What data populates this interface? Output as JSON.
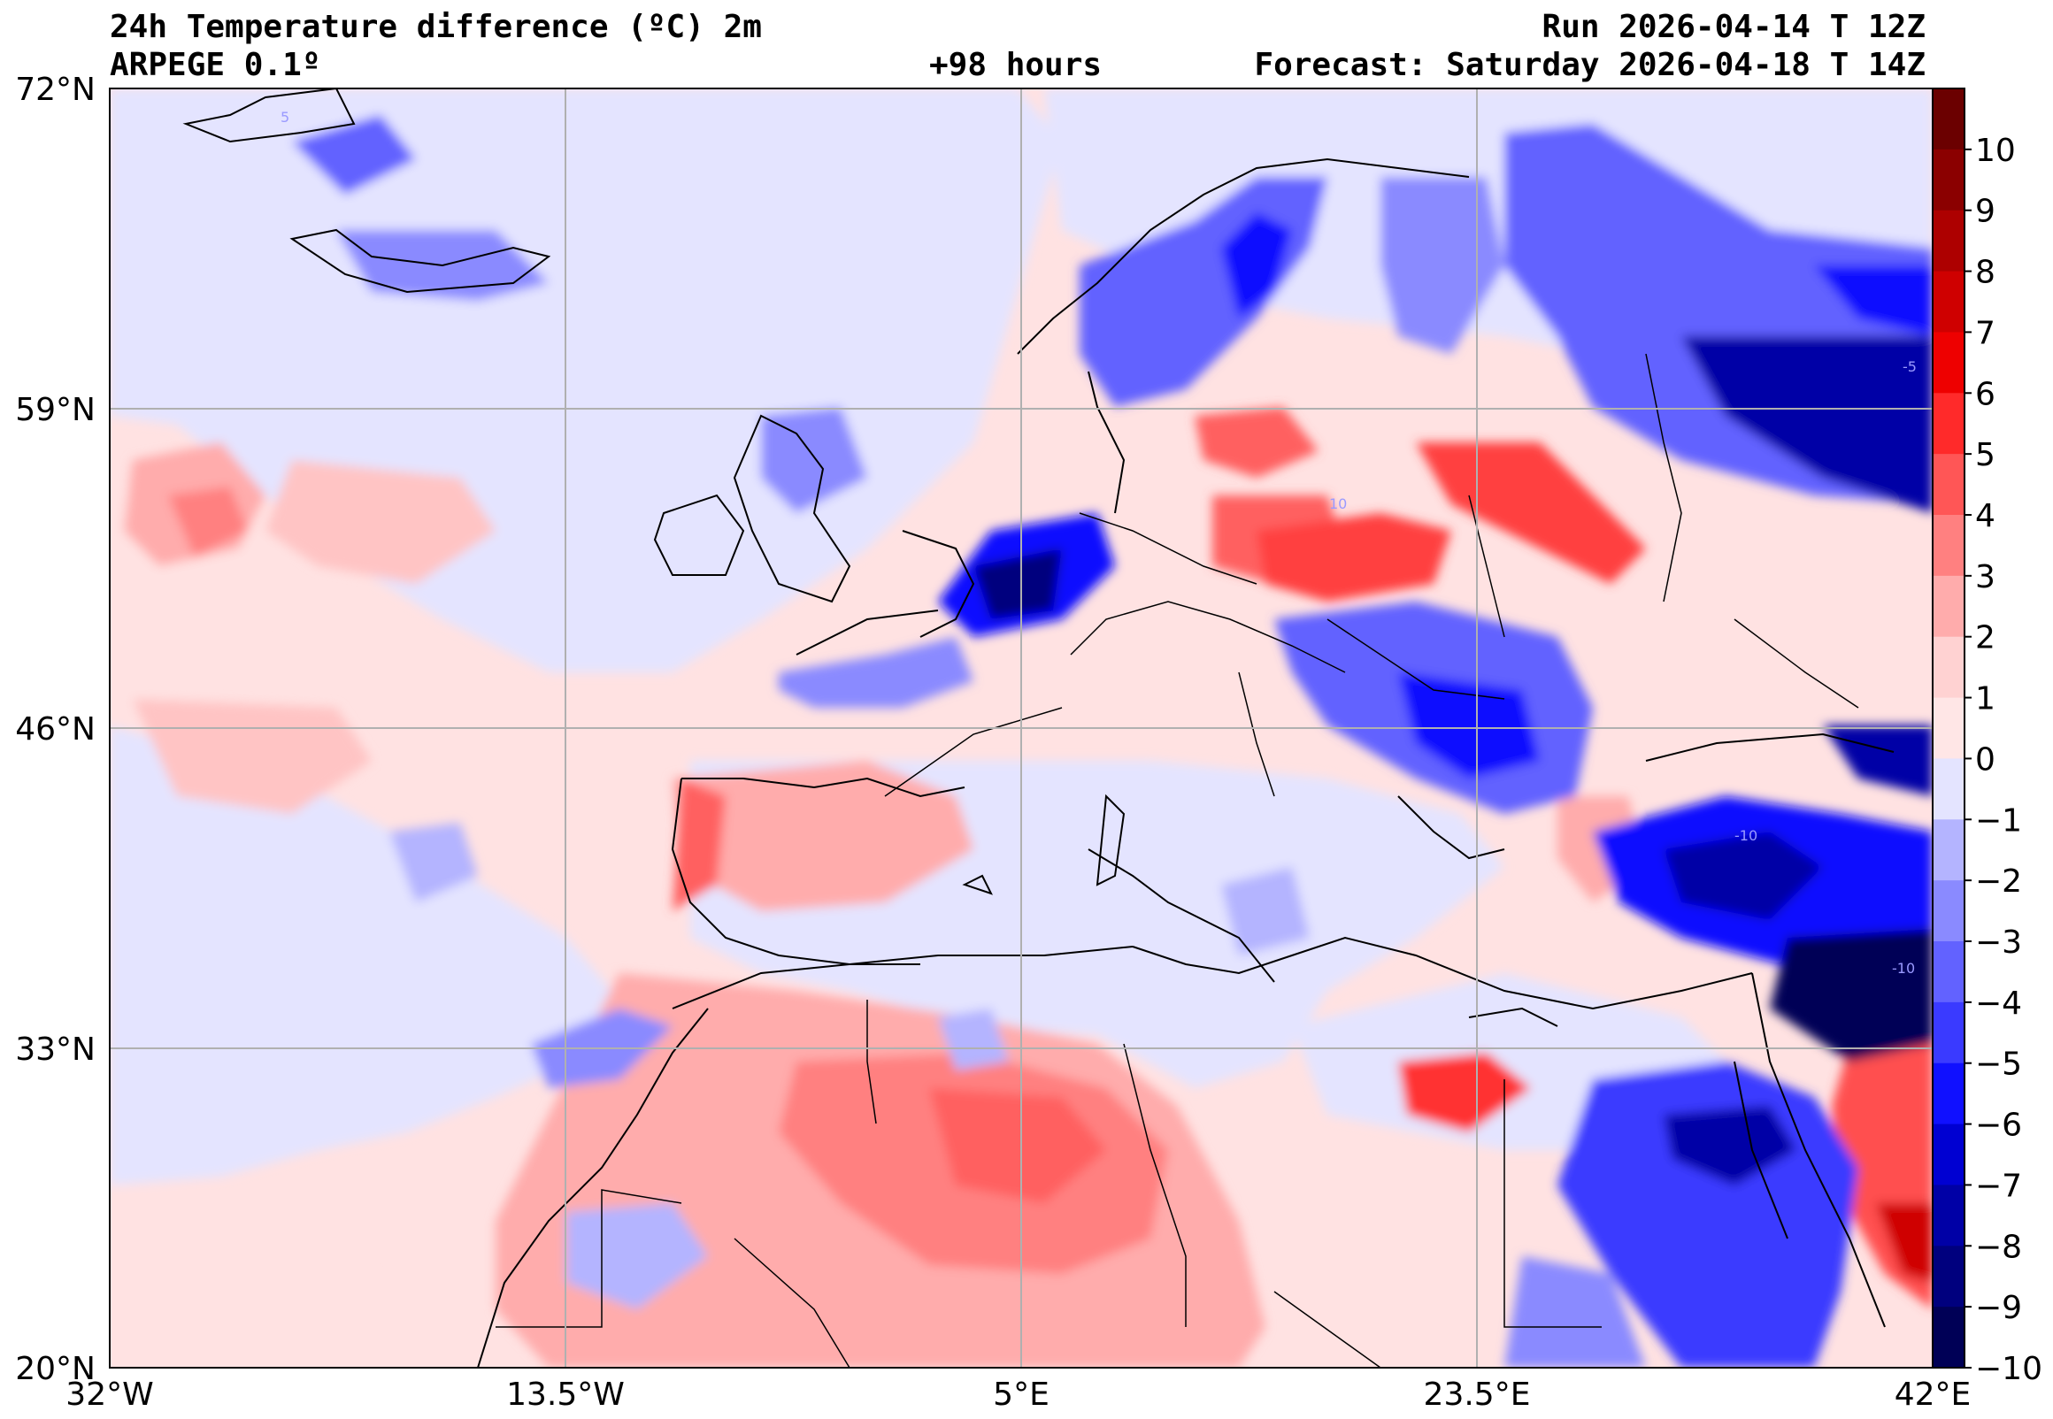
{
  "header": {
    "title": "24h Temperature difference (ºC) 2m",
    "model": "ARPEGE 0.1º",
    "lead_time": "+98 hours",
    "run": "Run 2026-04-14 T 12Z",
    "forecast": "Forecast: Saturday 2026-04-18 T 14Z"
  },
  "map": {
    "lon_range": [
      -32,
      42
    ],
    "lat_range": [
      20,
      72
    ],
    "lon_ticks": [
      "32°W",
      "13.5°W",
      "5°E",
      "23.5°E",
      "42°E"
    ],
    "lat_ticks": [
      "72°N",
      "59°N",
      "46°N",
      "33°N",
      "20°N"
    ],
    "gridlines": true
  },
  "colorbar": {
    "labels": [
      "10",
      "9",
      "8",
      "7",
      "6",
      "5",
      "4",
      "3",
      "2",
      "1",
      "0",
      "−1",
      "−2",
      "−3",
      "−4",
      "−5",
      "−6",
      "−7",
      "−8",
      "−9",
      "−10"
    ],
    "colors": [
      "#6b0000",
      "#8b0000",
      "#ad0000",
      "#cf0000",
      "#ee0000",
      "#ff2a2a",
      "#ff5656",
      "#ff8080",
      "#ffacac",
      "#ffd2d2",
      "#ffe6e6",
      "#e4e4ff",
      "#b4b4ff",
      "#8a8aff",
      "#6262ff",
      "#3a3aff",
      "#1010ff",
      "#0000d2",
      "#0000a6",
      "#00007e",
      "#000056"
    ]
  },
  "contour_labels": [
    "-10",
    "-10",
    "5",
    "10",
    "-5"
  ]
}
